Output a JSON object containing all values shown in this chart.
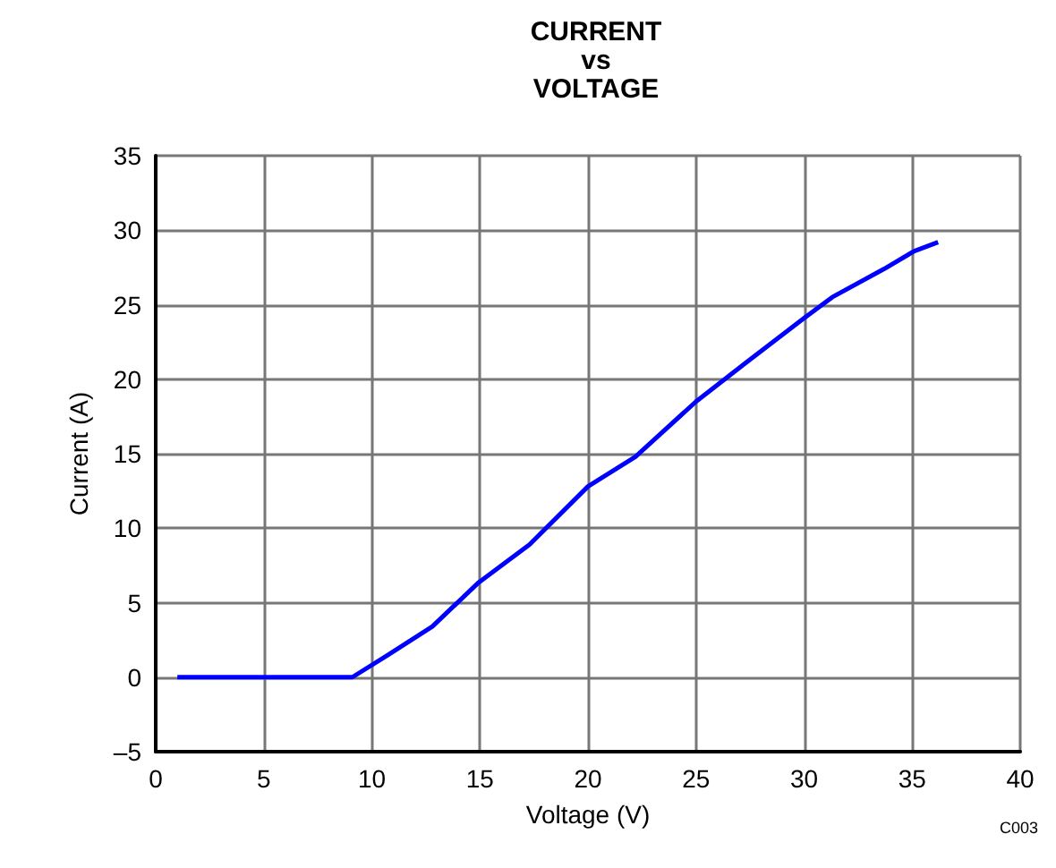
{
  "chart_data": {
    "type": "line",
    "title": "CURRENT\nvs\nVOLTAGE",
    "xlabel": "Voltage (V)",
    "ylabel": "Current (A)",
    "annotations": [
      "C003"
    ],
    "series": [
      {
        "color": "#0000ff",
        "x": [
          1,
          9.1,
          10.75,
          12.8,
          14.9,
          17.3,
          20,
          22.2,
          25,
          27.3,
          30,
          31.3,
          33.7,
          35.1,
          36.2
        ],
        "values": [
          0,
          0,
          1.5,
          3.4,
          6.3,
          8.9,
          12.8,
          14.8,
          18.5,
          21.1,
          24.1,
          25.5,
          27.4,
          28.6,
          29.2
        ]
      }
    ],
    "xlim": [
      0,
      40
    ],
    "xticks": [
      0,
      5,
      10,
      15,
      20,
      25,
      30,
      35,
      40
    ],
    "ylim": [
      -5,
      35
    ],
    "yticks": [
      {
        "value": -5,
        "label": "–5"
      },
      0,
      5,
      10,
      15,
      20,
      25,
      30,
      35
    ],
    "grid": true,
    "marker": "none",
    "line_style": "solid"
  }
}
